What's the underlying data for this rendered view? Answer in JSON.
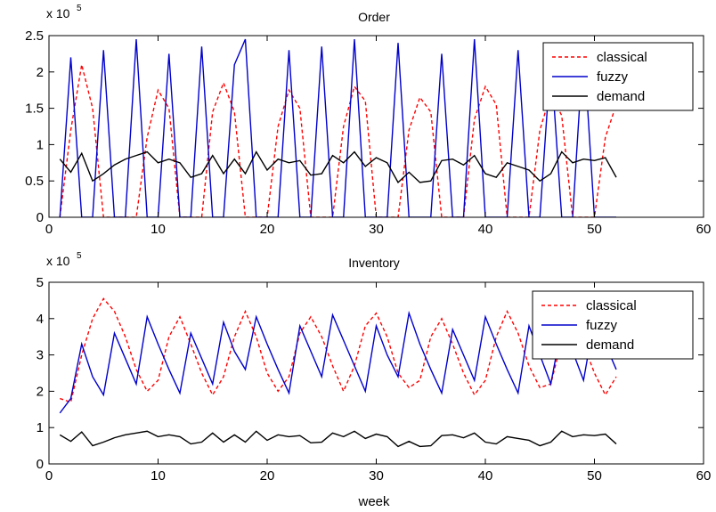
{
  "chart_data": [
    {
      "type": "line",
      "title": "Order",
      "xlabel": "",
      "ylabel": "",
      "xlim": [
        0,
        60
      ],
      "ylim": [
        0,
        2.5
      ],
      "xticks": [
        "0",
        "10",
        "20",
        "30",
        "40",
        "50",
        "60"
      ],
      "yticks": [
        "0",
        "0.5",
        "1",
        "1.5",
        "2",
        "2.5"
      ],
      "ytick_values": [
        0,
        0.5,
        1,
        1.5,
        2,
        2.5
      ],
      "xtick_values": [
        0,
        10,
        20,
        30,
        40,
        50,
        60
      ],
      "multiplier_base": "x 10",
      "multiplier_exp": "5",
      "grid": false,
      "legend_position": "top-right",
      "series": [
        {
          "name": "classical",
          "color": "#ff0000",
          "style": "dashed",
          "x": [
            1,
            2,
            3,
            4,
            5,
            6,
            7,
            8,
            9,
            10,
            11,
            12,
            13,
            14,
            15,
            16,
            17,
            18,
            19,
            20,
            21,
            22,
            23,
            24,
            25,
            26,
            27,
            28,
            29,
            30,
            31,
            32,
            33,
            34,
            35,
            36,
            37,
            38,
            39,
            40,
            41,
            42,
            43,
            44,
            45,
            46,
            47,
            48,
            49,
            50,
            51,
            52
          ],
          "y": [
            0,
            1.2,
            2.1,
            1.5,
            0,
            0,
            0,
            0,
            1.1,
            1.75,
            1.5,
            0,
            0,
            0,
            1.45,
            1.85,
            1.45,
            0,
            0,
            0,
            1.25,
            1.75,
            1.5,
            0,
            0,
            0,
            1.25,
            1.8,
            1.6,
            0,
            0,
            0,
            1.2,
            1.65,
            1.45,
            0,
            0,
            0,
            1.35,
            1.8,
            1.55,
            0,
            0,
            0,
            1.2,
            1.7,
            1.4,
            0,
            0,
            0,
            1.1,
            1.55
          ]
        },
        {
          "name": "fuzzy",
          "color": "#0000cc",
          "style": "solid",
          "x": [
            1,
            2,
            3,
            4,
            5,
            6,
            7,
            8,
            9,
            10,
            11,
            12,
            13,
            14,
            15,
            16,
            17,
            18,
            19,
            20,
            21,
            22,
            23,
            24,
            25,
            26,
            27,
            28,
            29,
            30,
            31,
            32,
            33,
            34,
            35,
            36,
            37,
            38,
            39,
            40,
            41,
            42,
            43,
            44,
            45,
            46,
            47,
            48,
            49,
            50,
            51,
            52
          ],
          "y": [
            0,
            2.2,
            0,
            0,
            2.3,
            0,
            0,
            2.45,
            0,
            0,
            2.25,
            0,
            0,
            2.35,
            0,
            0,
            2.1,
            2.45,
            0,
            0,
            0,
            2.3,
            0,
            0,
            2.35,
            0,
            0,
            2.45,
            0,
            0,
            0,
            2.4,
            0,
            0,
            0,
            2.25,
            0,
            0,
            2.45,
            0,
            0,
            0,
            2.3,
            0,
            0,
            2.2,
            0,
            0,
            2.4,
            0,
            0,
            0
          ]
        },
        {
          "name": "demand",
          "color": "#000000",
          "style": "solid",
          "x": [
            1,
            2,
            3,
            4,
            5,
            6,
            7,
            8,
            9,
            10,
            11,
            12,
            13,
            14,
            15,
            16,
            17,
            18,
            19,
            20,
            21,
            22,
            23,
            24,
            25,
            26,
            27,
            28,
            29,
            30,
            31,
            32,
            33,
            34,
            35,
            36,
            37,
            38,
            39,
            40,
            41,
            42,
            43,
            44,
            45,
            46,
            47,
            48,
            49,
            50,
            51,
            52
          ],
          "y": [
            0.8,
            0.62,
            0.88,
            0.5,
            0.6,
            0.72,
            0.8,
            0.85,
            0.9,
            0.75,
            0.8,
            0.75,
            0.55,
            0.6,
            0.85,
            0.6,
            0.8,
            0.6,
            0.9,
            0.65,
            0.8,
            0.75,
            0.78,
            0.58,
            0.6,
            0.85,
            0.75,
            0.9,
            0.7,
            0.82,
            0.75,
            0.48,
            0.62,
            0.48,
            0.5,
            0.78,
            0.8,
            0.72,
            0.85,
            0.6,
            0.55,
            0.75,
            0.7,
            0.65,
            0.5,
            0.6,
            0.9,
            0.75,
            0.8,
            0.78,
            0.82,
            0.55
          ]
        }
      ]
    },
    {
      "type": "line",
      "title": "Inventory",
      "xlabel": "week",
      "ylabel": "",
      "xlim": [
        0,
        60
      ],
      "ylim": [
        0,
        5
      ],
      "xticks": [
        "0",
        "10",
        "20",
        "30",
        "40",
        "50",
        "60"
      ],
      "yticks": [
        "0",
        "1",
        "2",
        "3",
        "4",
        "5"
      ],
      "ytick_values": [
        0,
        1,
        2,
        3,
        4,
        5
      ],
      "xtick_values": [
        0,
        10,
        20,
        30,
        40,
        50,
        60
      ],
      "multiplier_base": "x 10",
      "multiplier_exp": "5",
      "grid": false,
      "legend_position": "top-right",
      "series": [
        {
          "name": "classical",
          "color": "#ff0000",
          "style": "dashed",
          "x": [
            1,
            2,
            3,
            4,
            5,
            6,
            7,
            8,
            9,
            10,
            11,
            12,
            13,
            14,
            15,
            16,
            17,
            18,
            19,
            20,
            21,
            22,
            23,
            24,
            25,
            26,
            27,
            28,
            29,
            30,
            31,
            32,
            33,
            34,
            35,
            36,
            37,
            38,
            39,
            40,
            41,
            42,
            43,
            44,
            45,
            46,
            47,
            48,
            49,
            50,
            51,
            52
          ],
          "y": [
            1.8,
            1.7,
            3.0,
            4.0,
            4.55,
            4.2,
            3.5,
            2.6,
            2.0,
            2.3,
            3.5,
            4.05,
            3.3,
            2.5,
            1.9,
            2.4,
            3.5,
            4.2,
            3.5,
            2.5,
            2.0,
            2.4,
            3.6,
            4.05,
            3.5,
            2.7,
            2.0,
            2.7,
            3.8,
            4.15,
            3.5,
            2.5,
            2.1,
            2.3,
            3.5,
            4.0,
            3.3,
            2.5,
            1.9,
            2.3,
            3.5,
            4.2,
            3.6,
            2.7,
            2.1,
            2.2,
            3.4,
            4.0,
            3.3,
            2.5,
            1.9,
            2.4
          ]
        },
        {
          "name": "fuzzy",
          "color": "#0000cc",
          "style": "solid",
          "x": [
            1,
            2,
            3,
            4,
            5,
            6,
            7,
            8,
            9,
            10,
            11,
            12,
            13,
            14,
            15,
            16,
            17,
            18,
            19,
            20,
            21,
            22,
            23,
            24,
            25,
            26,
            27,
            28,
            29,
            30,
            31,
            32,
            33,
            34,
            35,
            36,
            37,
            38,
            39,
            40,
            41,
            42,
            43,
            44,
            45,
            46,
            47,
            48,
            49,
            50,
            51,
            52
          ],
          "y": [
            1.4,
            1.8,
            3.3,
            2.4,
            1.9,
            3.6,
            2.9,
            2.2,
            4.05,
            3.3,
            2.6,
            1.95,
            3.6,
            2.9,
            2.2,
            3.9,
            3.1,
            2.6,
            4.05,
            3.3,
            2.6,
            1.95,
            3.8,
            3.1,
            2.4,
            4.1,
            3.4,
            2.7,
            2.0,
            3.8,
            3.0,
            2.4,
            4.15,
            3.3,
            2.6,
            1.95,
            3.7,
            3.0,
            2.3,
            4.05,
            3.3,
            2.6,
            1.95,
            3.8,
            3.0,
            2.2,
            3.8,
            3.1,
            2.3,
            4.0,
            3.3,
            2.6
          ]
        },
        {
          "name": "demand",
          "color": "#000000",
          "style": "solid",
          "x": [
            1,
            2,
            3,
            4,
            5,
            6,
            7,
            8,
            9,
            10,
            11,
            12,
            13,
            14,
            15,
            16,
            17,
            18,
            19,
            20,
            21,
            22,
            23,
            24,
            25,
            26,
            27,
            28,
            29,
            30,
            31,
            32,
            33,
            34,
            35,
            36,
            37,
            38,
            39,
            40,
            41,
            42,
            43,
            44,
            45,
            46,
            47,
            48,
            49,
            50,
            51,
            52
          ],
          "y": [
            0.8,
            0.62,
            0.88,
            0.5,
            0.6,
            0.72,
            0.8,
            0.85,
            0.9,
            0.75,
            0.8,
            0.75,
            0.55,
            0.6,
            0.85,
            0.6,
            0.8,
            0.6,
            0.9,
            0.65,
            0.8,
            0.75,
            0.78,
            0.58,
            0.6,
            0.85,
            0.75,
            0.9,
            0.7,
            0.82,
            0.75,
            0.48,
            0.62,
            0.48,
            0.5,
            0.78,
            0.8,
            0.72,
            0.85,
            0.6,
            0.55,
            0.75,
            0.7,
            0.65,
            0.5,
            0.6,
            0.9,
            0.75,
            0.8,
            0.78,
            0.82,
            0.55
          ]
        }
      ]
    }
  ]
}
